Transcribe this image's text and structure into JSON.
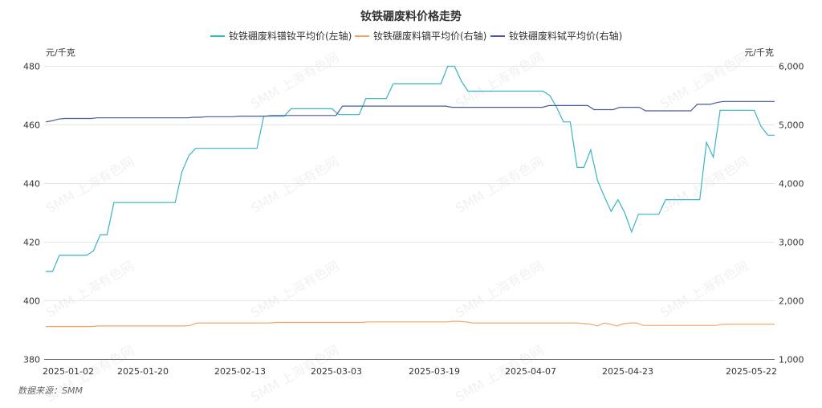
{
  "chart_data": {
    "type": "line",
    "title": "钕铁硼废料价格走势",
    "left_unit": "元/千克",
    "right_unit": "元/千克",
    "source": "数据来源：SMM",
    "watermark": "SMM 上海有色网",
    "grid": true,
    "legend_position": "top",
    "y_left": {
      "min": 380,
      "max": 480,
      "ticks": [
        "380",
        "400",
        "420",
        "440",
        "460",
        "480"
      ]
    },
    "y_right": {
      "min": 1000,
      "max": 6000,
      "ticks": [
        "1,000",
        "2,000",
        "3,000",
        "4,000",
        "5,000",
        "6,000"
      ]
    },
    "x_ticks": [
      "2025-01-02",
      "2025-01-20",
      "2025-02-13",
      "2025-03-03",
      "2025-03-19",
      "2025-04-07",
      "2025-04-23",
      "2025-05-22"
    ],
    "series": [
      {
        "name": "钕铁硼废料镨钕平均价(左轴)",
        "axis": "left",
        "color": "#38b4c4",
        "values": [
          410,
          410,
          415.5,
          415.5,
          415.5,
          415.5,
          415.5,
          417,
          422.5,
          422.5,
          433.5,
          433.5,
          433.5,
          433.5,
          433.5,
          433.5,
          433.5,
          433.5,
          433.5,
          433.5,
          444,
          449.5,
          452,
          452,
          452,
          452,
          452,
          452,
          452,
          452,
          452,
          452,
          463,
          463,
          463,
          463,
          465.5,
          465.5,
          465.5,
          465.5,
          465.5,
          465.5,
          465.5,
          463.5,
          463.5,
          463.5,
          463.5,
          469,
          469,
          469,
          469,
          474,
          474,
          474,
          474,
          474,
          474,
          474,
          474,
          480,
          480,
          475,
          471.5,
          471.5,
          471.5,
          471.5,
          471.5,
          471.5,
          471.5,
          471.5,
          471.5,
          471.5,
          471.5,
          471.5,
          470,
          466,
          461,
          461,
          445.5,
          445.5,
          451.5,
          441,
          435.5,
          430.5,
          434.5,
          430,
          423.5,
          429.5,
          429.5,
          429.5,
          429.5,
          434.5,
          434.5,
          434.5,
          434.5,
          434.5,
          434.5,
          454,
          449,
          465,
          465,
          465,
          465,
          465,
          465,
          459.5,
          456.5,
          456.5
        ]
      },
      {
        "name": "钕铁硼废料镝平均价(右轴)",
        "axis": "right",
        "color": "#f2a463",
        "values": [
          1560,
          1560,
          1560,
          1560,
          1560,
          1560,
          1560,
          1560,
          1570,
          1570,
          1570,
          1570,
          1570,
          1570,
          1570,
          1570,
          1570,
          1570,
          1570,
          1570,
          1570,
          1570,
          1580,
          1620,
          1620,
          1620,
          1620,
          1620,
          1620,
          1620,
          1620,
          1620,
          1620,
          1620,
          1620,
          1630,
          1630,
          1630,
          1630,
          1630,
          1630,
          1630,
          1630,
          1630,
          1630,
          1630,
          1630,
          1630,
          1630,
          1640,
          1640,
          1640,
          1640,
          1640,
          1640,
          1640,
          1640,
          1640,
          1640,
          1640,
          1640,
          1640,
          1650,
          1650,
          1640,
          1620,
          1620,
          1620,
          1620,
          1620,
          1620,
          1620,
          1620,
          1620,
          1620,
          1620,
          1620,
          1620,
          1620,
          1620,
          1620,
          1620,
          1610,
          1600,
          1570,
          1620,
          1600,
          1570,
          1610,
          1620,
          1620,
          1580,
          1580,
          1580,
          1580,
          1580,
          1580,
          1580,
          1580,
          1580,
          1580,
          1580,
          1580,
          1600,
          1600,
          1600,
          1600,
          1600,
          1600,
          1600,
          1600,
          1600
        ]
      },
      {
        "name": "钕铁硼废料铽平均价(右轴)",
        "axis": "right",
        "color": "#4a5a9c",
        "values": [
          5050,
          5070,
          5100,
          5110,
          5110,
          5110,
          5110,
          5110,
          5120,
          5120,
          5120,
          5120,
          5120,
          5120,
          5120,
          5120,
          5120,
          5120,
          5120,
          5120,
          5120,
          5120,
          5120,
          5130,
          5130,
          5140,
          5140,
          5140,
          5140,
          5140,
          5150,
          5150,
          5150,
          5150,
          5150,
          5160,
          5160,
          5160,
          5160,
          5160,
          5160,
          5160,
          5160,
          5160,
          5160,
          5160,
          5320,
          5320,
          5320,
          5320,
          5320,
          5320,
          5320,
          5320,
          5320,
          5320,
          5320,
          5320,
          5320,
          5320,
          5320,
          5320,
          5320,
          5300,
          5300,
          5300,
          5300,
          5300,
          5300,
          5300,
          5300,
          5300,
          5300,
          5300,
          5300,
          5300,
          5300,
          5300,
          5330,
          5330,
          5330,
          5330,
          5330,
          5330,
          5330,
          5260,
          5260,
          5260,
          5260,
          5300,
          5300,
          5300,
          5300,
          5240,
          5240,
          5240,
          5240,
          5240,
          5240,
          5240,
          5240,
          5350,
          5350,
          5350,
          5380,
          5400,
          5400,
          5400,
          5400,
          5400,
          5400,
          5400,
          5400,
          5400
        ]
      }
    ]
  }
}
